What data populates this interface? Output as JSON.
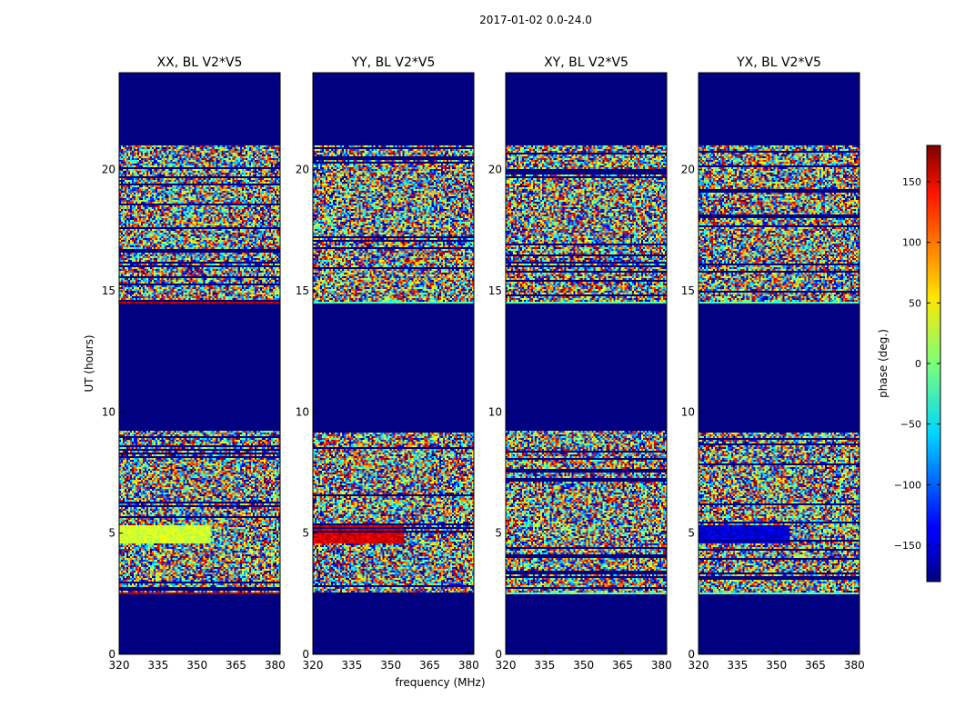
{
  "suptitle": "2017-01-02 0.0-24.0",
  "colorbar": {
    "label": "phase (deg.)",
    "range": [
      -180,
      180
    ],
    "ticks": [
      {
        "value": 150,
        "label": "150"
      },
      {
        "value": 100,
        "label": "100"
      },
      {
        "value": 50,
        "label": "50"
      },
      {
        "value": 0,
        "label": "0"
      },
      {
        "value": -50,
        "label": "−50"
      },
      {
        "value": -100,
        "label": "−100"
      },
      {
        "value": -150,
        "label": "−150"
      }
    ],
    "colormap": "jet"
  },
  "chart_data": [
    {
      "type": "heatmap",
      "title": "XX, BL V2*V5",
      "xlabel": "",
      "ylabel": "UT (hours)",
      "xlim": [
        320,
        382
      ],
      "ylim": [
        0,
        24
      ],
      "xticks": [
        "320",
        "335",
        "350",
        "365",
        "380"
      ],
      "yticks": [
        "0",
        "5",
        "10",
        "15",
        "20"
      ],
      "masked_value": -180,
      "data_blocks_hours": [
        [
          2.5,
          9.2
        ],
        [
          14.5,
          21.0
        ]
      ],
      "description_feature": "coherent phase band near 4.6-5.3 h (~0 to +60 deg)"
    },
    {
      "type": "heatmap",
      "title": "YY, BL V2*V5",
      "xlabel": "frequency (MHz)",
      "ylabel": "",
      "xlim": [
        320,
        382
      ],
      "ylim": [
        0,
        24
      ],
      "xticks": [
        "320",
        "335",
        "350",
        "365",
        "380"
      ],
      "yticks": [
        "0",
        "5",
        "10",
        "15",
        "20"
      ],
      "masked_value": -180,
      "data_blocks_hours": [
        [
          2.5,
          9.2
        ],
        [
          14.5,
          21.0
        ]
      ],
      "description_feature": "coherent phase band near 4.6-5.3 h (~+100 to +180 deg)"
    },
    {
      "type": "heatmap",
      "title": "XY, BL V2*V5",
      "xlabel": "",
      "ylabel": "",
      "xlim": [
        320,
        382
      ],
      "ylim": [
        0,
        24
      ],
      "xticks": [
        "320",
        "335",
        "350",
        "365",
        "380"
      ],
      "yticks": [
        "0",
        "5",
        "10",
        "15",
        "20"
      ],
      "masked_value": -180,
      "data_blocks_hours": [
        [
          2.5,
          9.2
        ],
        [
          14.5,
          21.0
        ]
      ],
      "description_feature": "noise-like phases"
    },
    {
      "type": "heatmap",
      "title": "YX, BL V2*V5",
      "xlabel": "",
      "ylabel": "",
      "xlim": [
        320,
        382
      ],
      "ylim": [
        0,
        24
      ],
      "xticks": [
        "320",
        "335",
        "350",
        "365",
        "380"
      ],
      "yticks": [
        "0",
        "5",
        "10",
        "15",
        "20"
      ],
      "masked_value": -180,
      "data_blocks_hours": [
        [
          2.5,
          9.2
        ],
        [
          14.5,
          21.0
        ]
      ],
      "description_feature": "weak band near 5 h (~-150 deg)"
    }
  ]
}
